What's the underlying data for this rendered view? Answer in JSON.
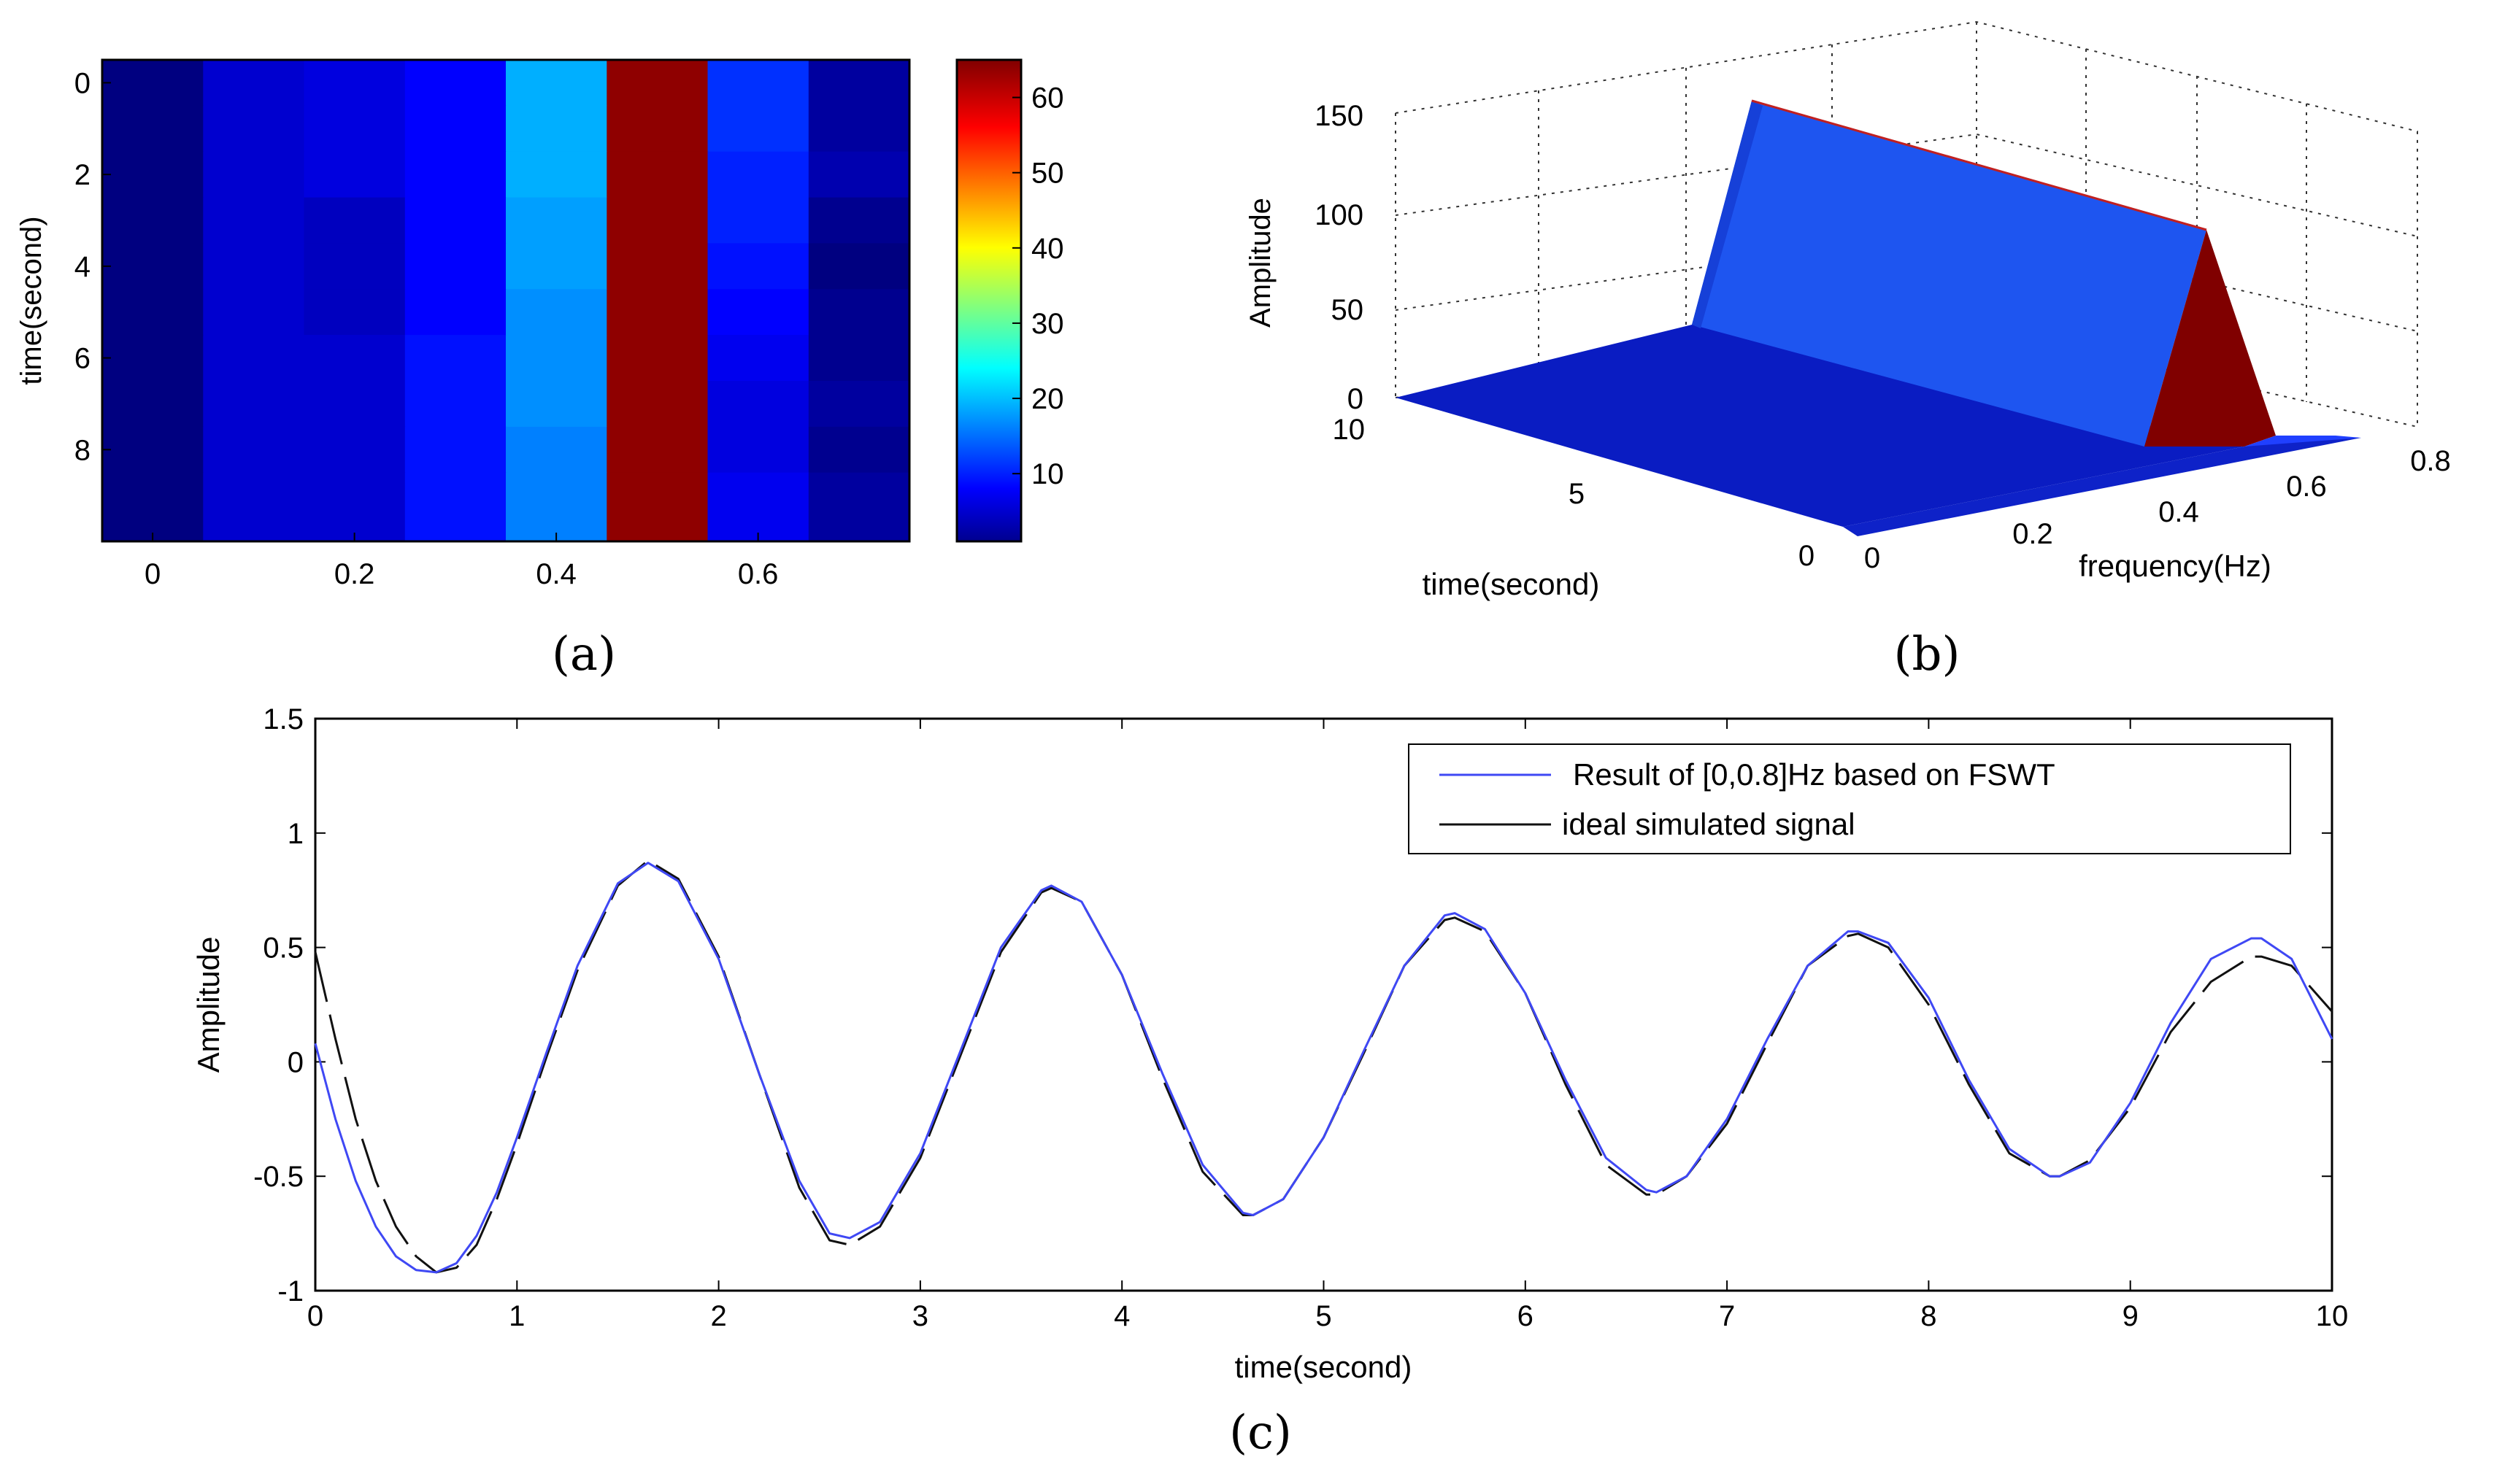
{
  "chart_data": [
    {
      "panel": "a",
      "caption": "(a)",
      "type": "heatmap",
      "xlabel": "",
      "ylabel": "time(second)",
      "x_ticks": [
        "0",
        "0.2",
        "0.4",
        "0.6"
      ],
      "x_tick_values": [
        0,
        0.2,
        0.4,
        0.6
      ],
      "y_ticks": [
        "0",
        "2",
        "4",
        "6",
        "8"
      ],
      "y_tick_values": [
        0,
        2,
        4,
        6,
        8
      ],
      "xlim": [
        -0.05,
        0.75
      ],
      "ylim": [
        -0.5,
        10
      ],
      "column_centers": [
        0,
        0.1,
        0.2,
        0.3,
        0.4,
        0.5,
        0.6,
        0.7
      ],
      "row_times": [
        0,
        1,
        2,
        3,
        4,
        5,
        6,
        7,
        8,
        9
      ],
      "values": [
        [
          1,
          6,
          7,
          9,
          20,
          64,
          12,
          3
        ],
        [
          1,
          6,
          7,
          9,
          20,
          64,
          12,
          3
        ],
        [
          1,
          6,
          7,
          9,
          20,
          64,
          11,
          4
        ],
        [
          1,
          6,
          5,
          9,
          19,
          64,
          11,
          2
        ],
        [
          1,
          6,
          5,
          9,
          19,
          64,
          10,
          1
        ],
        [
          1,
          6,
          5,
          9,
          18,
          64,
          9,
          2
        ],
        [
          1,
          6,
          6,
          10,
          18,
          64,
          8,
          2
        ],
        [
          1,
          6,
          6,
          10,
          18,
          64,
          7,
          3
        ],
        [
          1,
          6,
          6,
          10,
          17,
          64,
          7,
          2
        ],
        [
          1,
          6,
          6,
          10,
          17,
          64,
          8,
          3
        ]
      ],
      "colorbar": {
        "ticks": [
          "10",
          "20",
          "30",
          "40",
          "50",
          "60"
        ],
        "tick_values": [
          10,
          20,
          30,
          40,
          50,
          60
        ],
        "range": [
          1,
          65
        ],
        "colormap": "jet"
      }
    },
    {
      "panel": "b",
      "caption": "(b)",
      "type": "surface",
      "zlabel": "Amplitude",
      "xlabel": "frequency(Hz)",
      "ylabel": "time(second)",
      "z_ticks": [
        "0",
        "50",
        "100",
        "150"
      ],
      "x_ticks": [
        "0",
        "0.2",
        "0.4",
        "0.6",
        "0.8"
      ],
      "y_ticks": [
        "0",
        "5",
        "10"
      ],
      "xlim": [
        0,
        0.8
      ],
      "ylim": [
        0,
        10
      ],
      "zlim": [
        0,
        150
      ],
      "frequency_grid": [
        0,
        0.1,
        0.2,
        0.3,
        0.4,
        0.5,
        0.6,
        0.7
      ],
      "time_grid": [
        0,
        5,
        10
      ],
      "amplitude_profile": [
        1,
        6,
        10,
        12,
        18,
        145,
        12,
        3
      ],
      "colors": {
        "low": "#0a18c8",
        "mid": "#1a55f2",
        "peak_face": "#800000"
      }
    },
    {
      "panel": "c",
      "caption": "(c)",
      "type": "line",
      "xlabel": "time(second)",
      "ylabel": "Amplitude",
      "xlim": [
        0,
        10
      ],
      "ylim": [
        -1,
        1.5
      ],
      "x_ticks": [
        "0",
        "1",
        "2",
        "3",
        "4",
        "5",
        "6",
        "7",
        "8",
        "9",
        "10"
      ],
      "x_tick_values": [
        0,
        1,
        2,
        3,
        4,
        5,
        6,
        7,
        8,
        9,
        10
      ],
      "y_ticks": [
        "-1",
        "-0.5",
        "0",
        "0.5",
        "1",
        "1.5"
      ],
      "y_tick_values": [
        -1,
        -0.5,
        0,
        0.5,
        1,
        1.5
      ],
      "legend_position": "top-right",
      "series": [
        {
          "name": "Result of [0,0.8]Hz based on FSWT",
          "color": "#3f48f4",
          "dashed": false,
          "x": [
            0,
            0.1,
            0.2,
            0.3,
            0.4,
            0.5,
            0.6,
            0.7,
            0.8,
            0.9,
            1.0,
            1.15,
            1.3,
            1.5,
            1.65,
            1.8,
            2.0,
            2.2,
            2.4,
            2.55,
            2.65,
            2.8,
            3.0,
            3.2,
            3.4,
            3.6,
            3.65,
            3.8,
            4.0,
            4.2,
            4.4,
            4.6,
            4.65,
            4.8,
            5.0,
            5.2,
            5.4,
            5.6,
            5.65,
            5.8,
            6.0,
            6.2,
            6.4,
            6.6,
            6.65,
            6.8,
            7.0,
            7.2,
            7.4,
            7.6,
            7.65,
            7.8,
            8.0,
            8.2,
            8.4,
            8.6,
            8.65,
            8.8,
            9.0,
            9.2,
            9.4,
            9.6,
            9.65,
            9.8,
            10.0
          ],
          "y": [
            0.08,
            -0.25,
            -0.52,
            -0.72,
            -0.85,
            -0.91,
            -0.92,
            -0.88,
            -0.76,
            -0.57,
            -0.33,
            0.05,
            0.42,
            0.78,
            0.87,
            0.79,
            0.45,
            -0.05,
            -0.52,
            -0.75,
            -0.77,
            -0.7,
            -0.4,
            0.05,
            0.5,
            0.75,
            0.77,
            0.7,
            0.38,
            -0.05,
            -0.45,
            -0.66,
            -0.67,
            -0.6,
            -0.33,
            0.05,
            0.42,
            0.64,
            0.65,
            0.58,
            0.3,
            -0.08,
            -0.42,
            -0.56,
            -0.57,
            -0.5,
            -0.25,
            0.1,
            0.42,
            0.57,
            0.57,
            0.52,
            0.28,
            -0.08,
            -0.38,
            -0.5,
            -0.5,
            -0.44,
            -0.18,
            0.17,
            0.45,
            0.54,
            0.54,
            0.45,
            0.1
          ]
        },
        {
          "name": "ideal simulated signal",
          "color": "#111111",
          "dashed": true,
          "x": [
            0,
            0.1,
            0.2,
            0.3,
            0.4,
            0.5,
            0.6,
            0.7,
            0.8,
            0.9,
            1.0,
            1.15,
            1.3,
            1.5,
            1.65,
            1.8,
            2.0,
            2.2,
            2.4,
            2.55,
            2.65,
            2.8,
            3.0,
            3.2,
            3.4,
            3.6,
            3.65,
            3.8,
            4.0,
            4.2,
            4.4,
            4.6,
            4.65,
            4.8,
            5.0,
            5.2,
            5.4,
            5.6,
            5.65,
            5.8,
            6.0,
            6.2,
            6.4,
            6.6,
            6.65,
            6.8,
            7.0,
            7.2,
            7.4,
            7.6,
            7.65,
            7.8,
            8.0,
            8.2,
            8.4,
            8.6,
            8.65,
            8.8,
            9.0,
            9.2,
            9.4,
            9.6,
            9.65,
            9.8,
            10.0
          ],
          "y": [
            0.48,
            0.1,
            -0.25,
            -0.52,
            -0.72,
            -0.85,
            -0.92,
            -0.9,
            -0.8,
            -0.6,
            -0.36,
            0.03,
            0.4,
            0.77,
            0.88,
            0.8,
            0.46,
            -0.05,
            -0.55,
            -0.78,
            -0.8,
            -0.72,
            -0.42,
            0.03,
            0.48,
            0.74,
            0.76,
            0.7,
            0.38,
            -0.07,
            -0.48,
            -0.67,
            -0.67,
            -0.6,
            -0.33,
            0.04,
            0.42,
            0.62,
            0.63,
            0.57,
            0.3,
            -0.1,
            -0.45,
            -0.58,
            -0.58,
            -0.5,
            -0.27,
            0.08,
            0.42,
            0.55,
            0.56,
            0.5,
            0.25,
            -0.1,
            -0.4,
            -0.5,
            -0.5,
            -0.43,
            -0.2,
            0.13,
            0.35,
            0.46,
            0.46,
            0.42,
            0.22
          ]
        }
      ]
    }
  ]
}
